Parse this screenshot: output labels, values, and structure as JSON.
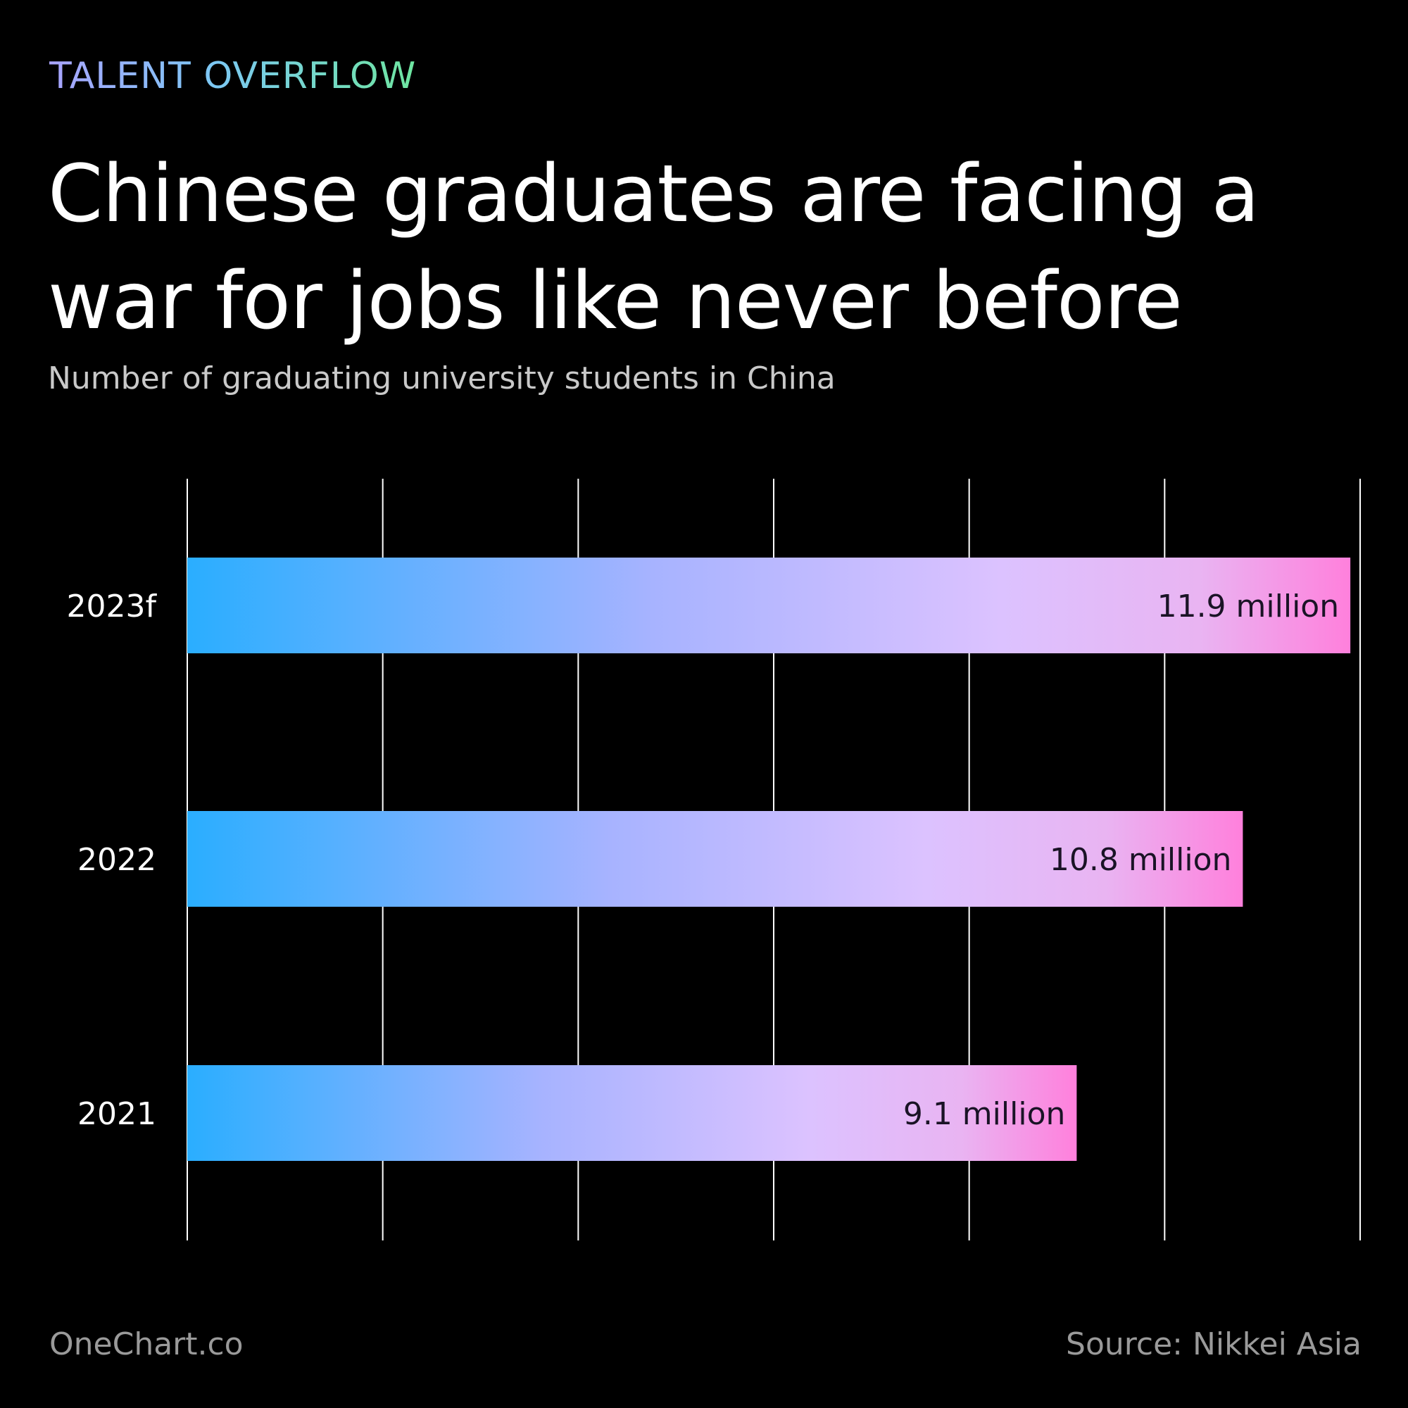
{
  "header": {
    "kicker": "TALENT OVERFLOW",
    "title": "Chinese graduates are facing a war for jobs like never before",
    "subtitle": "Number of graduating university students in China"
  },
  "footer": {
    "brand": "OneChart.co",
    "source": "Source: Nikkei Asia"
  },
  "colors": {
    "background": "#000000",
    "bar_gradient_start": "#2aaeff",
    "bar_gradient_mid": "#dcc2ff",
    "bar_gradient_end": "#ff80dc",
    "gridline": "#ffffff",
    "label_text": "#ffffff",
    "value_text": "#1a1326"
  },
  "chart_data": {
    "type": "bar",
    "orientation": "horizontal",
    "categories": [
      "2023f",
      "2022",
      "2021"
    ],
    "values": [
      11.9,
      10.8,
      9.1
    ],
    "value_labels": [
      "11.9 million",
      "10.8 million",
      "9.1 million"
    ],
    "unit": "million",
    "xlim": [
      0,
      12
    ],
    "grid": true,
    "legend": "none"
  }
}
